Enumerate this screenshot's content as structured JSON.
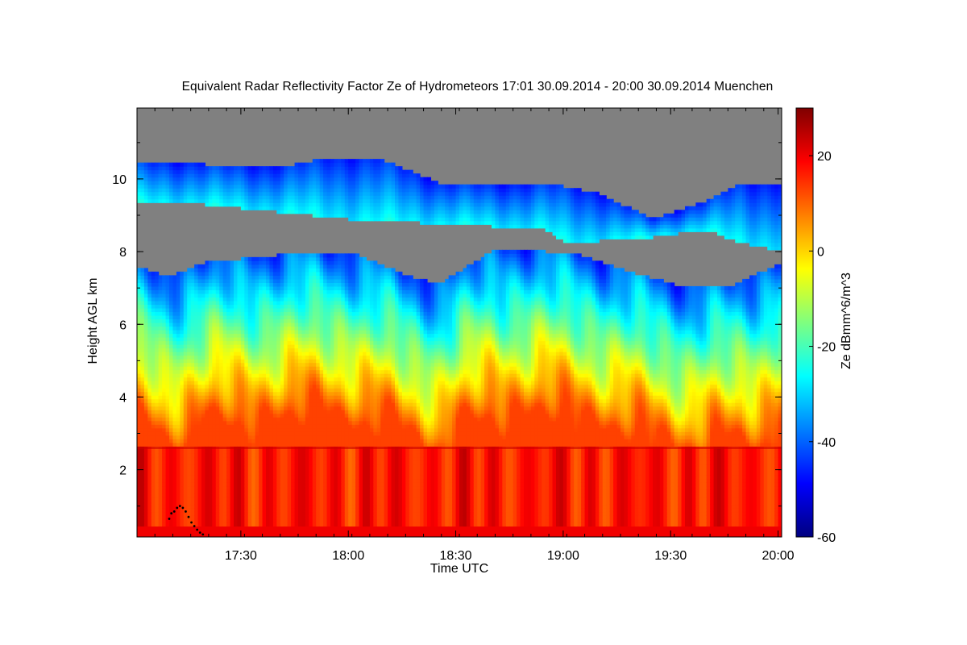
{
  "chart_data": {
    "type": "heatmap",
    "title": "Equivalent Radar Reflectivity Factor Ze of Hydrometeors   17:01 30.09.2014 - 20:00 30.09.2014 Muenchen",
    "xlabel": "Time UTC",
    "ylabel": "Height AGL km",
    "x_range": [
      "17:01",
      "20:01"
    ],
    "x_ticks": [
      "17:30",
      "18:00",
      "18:30",
      "19:00",
      "19:30",
      "20:00"
    ],
    "x_tick_minutes": [
      30,
      60,
      90,
      120,
      150,
      180
    ],
    "x_range_minutes": [
      1,
      181
    ],
    "ylim": [
      0.15,
      11.95
    ],
    "y_ticks": [
      2,
      4,
      6,
      8,
      10
    ],
    "colorbar": {
      "label": "Ze dBmm^6/m^3",
      "range": [
        -60,
        30
      ],
      "ticks": [
        -60,
        -40,
        -20,
        0,
        20
      ],
      "tick_labels": [
        "-60",
        "-40",
        "-20",
        "0",
        "20"
      ],
      "colormap": [
        "#00007f",
        "#0000ff",
        "#007fff",
        "#00ffff",
        "#7fff7f",
        "#ffff00",
        "#ff7f00",
        "#ff0000",
        "#7f0000"
      ]
    },
    "no_signal_color": "#808080",
    "cloud_top_km": [
      {
        "t": 1,
        "h": 10.5
      },
      {
        "t": 20,
        "h": 10.4
      },
      {
        "t": 40,
        "h": 10.3
      },
      {
        "t": 55,
        "h": 10.6
      },
      {
        "t": 70,
        "h": 10.5
      },
      {
        "t": 85,
        "h": 9.9
      },
      {
        "t": 100,
        "h": 9.8
      },
      {
        "t": 115,
        "h": 9.9
      },
      {
        "t": 130,
        "h": 9.6
      },
      {
        "t": 145,
        "h": 8.9
      },
      {
        "t": 160,
        "h": 9.4
      },
      {
        "t": 170,
        "h": 9.9
      },
      {
        "t": 181,
        "h": 9.8
      }
    ],
    "upper_layer_base_km": [
      {
        "t": 1,
        "h": 9.4
      },
      {
        "t": 20,
        "h": 9.3
      },
      {
        "t": 40,
        "h": 9.1
      },
      {
        "t": 60,
        "h": 8.9
      },
      {
        "t": 80,
        "h": 8.8
      },
      {
        "t": 100,
        "h": 8.7
      },
      {
        "t": 115,
        "h": 8.6
      },
      {
        "t": 121,
        "h": 8.25
      },
      {
        "t": 130,
        "h": 8.3
      },
      {
        "t": 145,
        "h": 8.4
      },
      {
        "t": 160,
        "h": 8.6
      },
      {
        "t": 168,
        "h": 8.3
      },
      {
        "t": 181,
        "h": 8.0
      }
    ],
    "lower_layer_top_km": [
      {
        "t": 1,
        "h": 7.6
      },
      {
        "t": 10,
        "h": 7.3
      },
      {
        "t": 20,
        "h": 7.7
      },
      {
        "t": 40,
        "h": 7.9
      },
      {
        "t": 60,
        "h": 8.0
      },
      {
        "t": 75,
        "h": 7.4
      },
      {
        "t": 85,
        "h": 7.1
      },
      {
        "t": 100,
        "h": 8.0
      },
      {
        "t": 115,
        "h": 8.0
      },
      {
        "t": 125,
        "h": 7.9
      },
      {
        "t": 140,
        "h": 7.4
      },
      {
        "t": 155,
        "h": 7.0
      },
      {
        "t": 168,
        "h": 7.1
      },
      {
        "t": 181,
        "h": 7.7
      }
    ],
    "melting_layer_km": 2.6,
    "surface_clutter_top_km": 0.4,
    "annotation_points": [
      {
        "t": 10.0,
        "h": 0.65
      },
      {
        "t": 10.6,
        "h": 0.8
      },
      {
        "t": 11.4,
        "h": 0.85
      },
      {
        "t": 12.2,
        "h": 0.95
      },
      {
        "t": 13.0,
        "h": 1.0
      },
      {
        "t": 13.8,
        "h": 0.95
      },
      {
        "t": 14.6,
        "h": 0.85
      },
      {
        "t": 15.4,
        "h": 0.7
      },
      {
        "t": 16.2,
        "h": 0.55
      },
      {
        "t": 17.0,
        "h": 0.45
      },
      {
        "t": 17.8,
        "h": 0.35
      },
      {
        "t": 18.6,
        "h": 0.27
      },
      {
        "t": 19.4,
        "h": 0.22
      }
    ]
  }
}
